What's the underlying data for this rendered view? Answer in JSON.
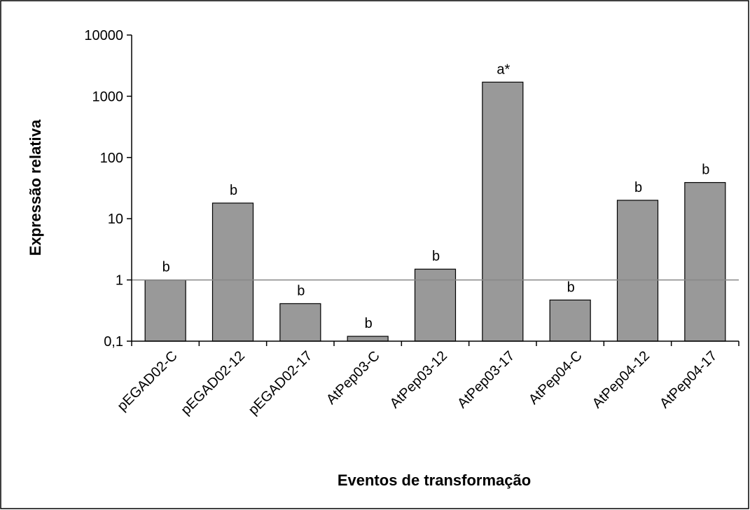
{
  "chart_data": {
    "type": "bar",
    "log_scale": true,
    "xlabel": "Eventos de transformação",
    "ylabel": "Expressão relativa",
    "categories": [
      "pEGAD02-C",
      "pEGAD02-12",
      "pEGAD02-17",
      "AtPep03-C",
      "AtPep03-12",
      "AtPep03-17",
      "AtPep04-C",
      "AtPep04-12",
      "AtPep04-17"
    ],
    "values": [
      1,
      18,
      0.41,
      0.12,
      1.5,
      1700,
      0.47,
      20,
      39
    ],
    "annotations": [
      "b",
      "b",
      "b",
      "b",
      "b",
      "a*",
      "b",
      "b",
      "b"
    ],
    "color": "#999999",
    "reference_line": 1,
    "ylim": [
      0.1,
      10000
    ],
    "yticks": [
      {
        "value": 0.1,
        "label": "0,1"
      },
      1,
      10,
      100,
      1000,
      10000
    ]
  }
}
